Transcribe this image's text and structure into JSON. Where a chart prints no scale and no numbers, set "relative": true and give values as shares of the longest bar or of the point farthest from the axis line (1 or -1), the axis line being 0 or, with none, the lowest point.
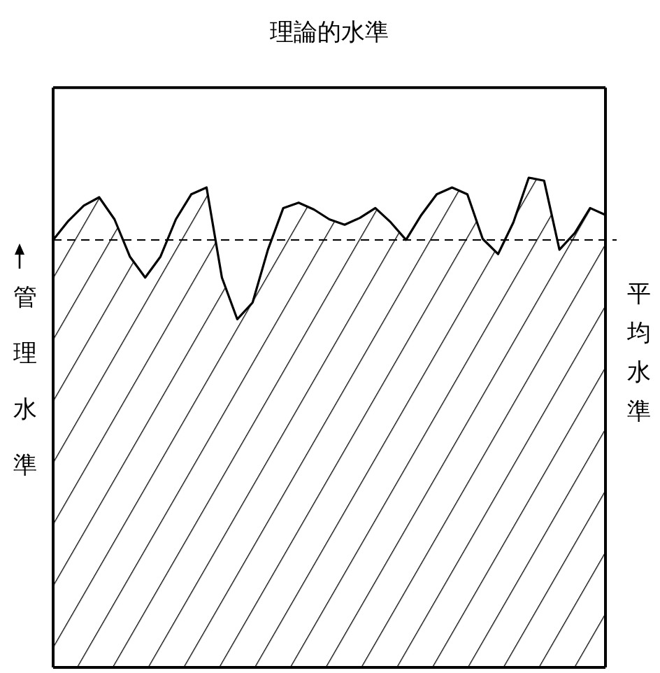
{
  "chart_data": {
    "type": "line",
    "relative": true,
    "ylabel": "管理水準",
    "color": "#000000",
    "categories": [
      null,
      null,
      null,
      null,
      null,
      null,
      null,
      null,
      null,
      null,
      null,
      null,
      null,
      null,
      null,
      null,
      null,
      null,
      null,
      null,
      null,
      null,
      null,
      null,
      null,
      null,
      null,
      null,
      null,
      null,
      null,
      null,
      null,
      null,
      null,
      null,
      null
    ],
    "values": [
      0.873,
      0.912,
      0.943,
      0.96,
      0.915,
      0.839,
      0.796,
      0.839,
      0.915,
      0.966,
      0.98,
      0.796,
      0.711,
      0.745,
      0.853,
      0.938,
      0.949,
      0.935,
      0.915,
      0.904,
      0.918,
      0.938,
      0.909,
      0.873,
      0.924,
      0.966,
      0.98,
      0.966,
      0.875,
      0.844,
      0.909,
      1,
      0.994,
      0.853,
      0.887,
      0.938,
      0.924
    ],
    "ref_lines": [
      {
        "axis": "y",
        "value": 1.184,
        "label": "理論的水準",
        "line_style": "solid"
      },
      {
        "axis": "y",
        "value": 0.873,
        "label": "平均水準",
        "line_style": "dashed"
      }
    ]
  }
}
